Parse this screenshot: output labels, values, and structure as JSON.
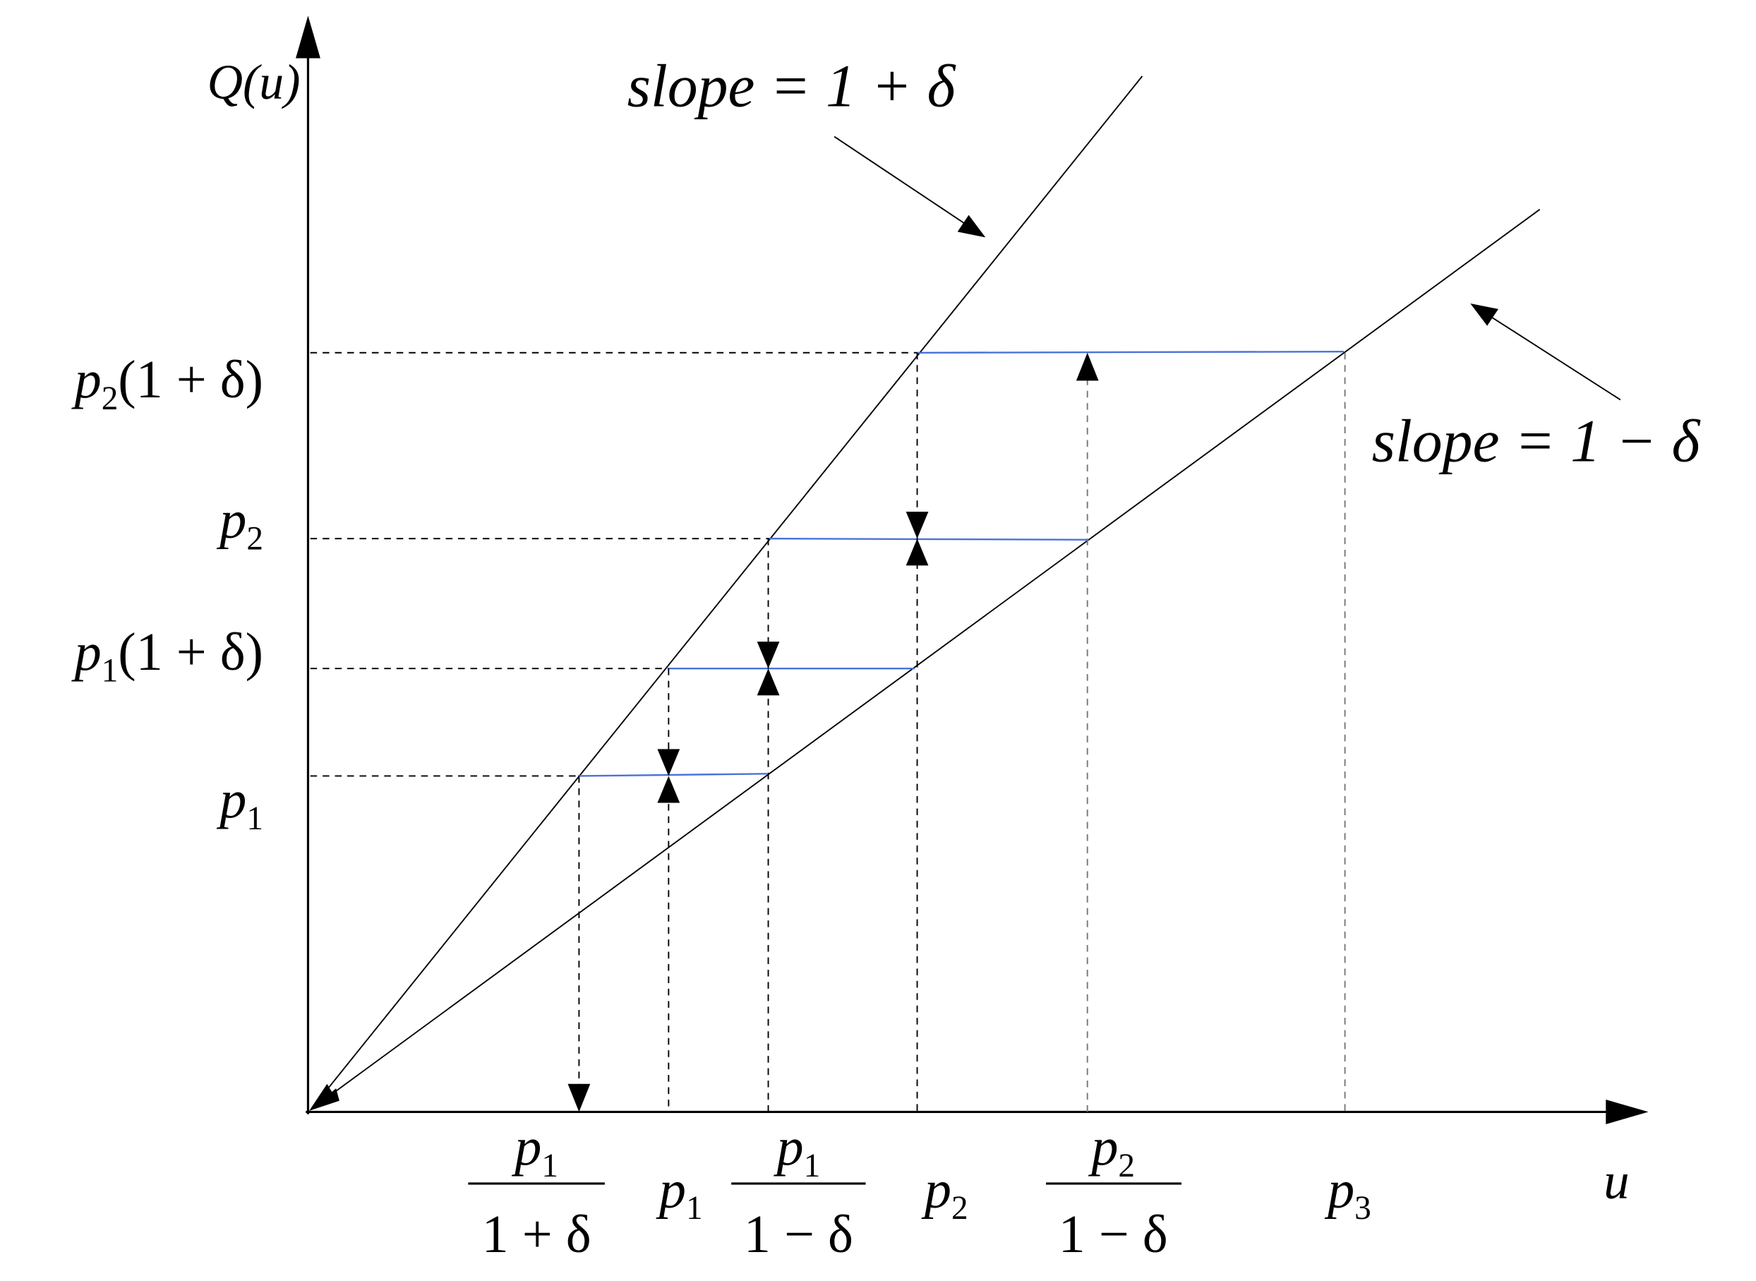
{
  "axes": {
    "y_label": "Q(u)",
    "x_label": "u"
  },
  "annotations": [
    "slope = 1 + δ",
    "slope = 1 − δ"
  ],
  "y_labels": [
    {
      "symbol": "p",
      "subscript": "2",
      "suffix": "(1 + δ)"
    },
    {
      "symbol": "p",
      "subscript": "2"
    },
    {
      "symbol": "p",
      "subscript": "1",
      "suffix": "(1 + δ)"
    },
    {
      "symbol": "p",
      "subscript": "1"
    }
  ],
  "x_labels": [
    {
      "numerator": {
        "symbol": "p",
        "subscript": "1"
      },
      "denominator": "1 + δ"
    },
    {
      "symbol": "p",
      "subscript": "1"
    },
    {
      "numerator": {
        "symbol": "p",
        "subscript": "1"
      },
      "denominator": "1 − δ"
    },
    {
      "symbol": "p",
      "subscript": "2"
    },
    {
      "numerator": {
        "symbol": "p",
        "subscript": "2"
      },
      "denominator": "1 − δ"
    },
    {
      "symbol": "p",
      "subscript": "3"
    }
  ]
}
